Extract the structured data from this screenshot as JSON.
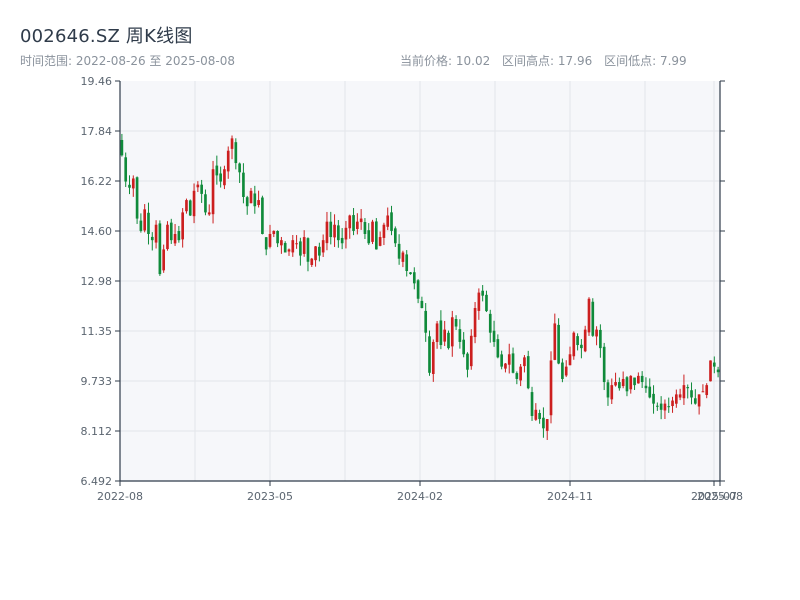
{
  "header": {
    "title": "002646.SZ 周K线图",
    "date_range": "时间范围: 2022-08-26 至 2025-08-08",
    "current_price": "当前价格: 10.02",
    "range_high": "区间高点: 17.96",
    "range_low": "区间低点: 7.99"
  },
  "colors": {
    "up": "#cc1f1f",
    "down": "#0f8a3a",
    "plot_bg": "#f6f7fa",
    "grid": "#e3e6ea",
    "axis": "#2f3b4a"
  },
  "chart_data": {
    "type": "candlestick",
    "title": "002646.SZ 周K线图",
    "ylim": [
      6.492,
      19.46
    ],
    "y_ticks": [
      "19.46",
      "17.84",
      "16.22",
      "14.60",
      "12.98",
      "11.35",
      "9.733",
      "8.112",
      "6.492"
    ],
    "x_ticks": [
      "2022-08",
      "2023-05",
      "2024-02",
      "2024-11",
      "2025-07",
      "2025-08"
    ],
    "grid": true,
    "up_color": "#cc1f1f",
    "down_color": "#0f8a3a",
    "closes": [
      17.05,
      16.2,
      16.0,
      16.3,
      15.0,
      14.6,
      15.3,
      14.5,
      14.3,
      14.8,
      13.2,
      14.0,
      14.8,
      14.3,
      14.5,
      14.3,
      15.2,
      15.6,
      15.1,
      15.9,
      16.1,
      15.8,
      15.2,
      15.2,
      16.6,
      16.4,
      16.2,
      16.6,
      17.2,
      17.6,
      16.8,
      16.5,
      15.7,
      15.4,
      15.9,
      15.4,
      15.6,
      14.5,
      14.0,
      14.5,
      14.6,
      14.2,
      14.3,
      13.9,
      14.0,
      14.3,
      14.2,
      13.8,
      14.4,
      13.6,
      13.7,
      14.1,
      13.8,
      14.3,
      14.9,
      14.4,
      14.8,
      14.3,
      14.2,
      14.7,
      15.1,
      14.6,
      14.9,
      15.0,
      14.5,
      14.2,
      14.9,
      14.0,
      14.4,
      14.8,
      15.1,
      14.6,
      14.2,
      13.7,
      13.9,
      13.3,
      13.2,
      12.9,
      12.4,
      12.1,
      11.3,
      10.0,
      11.0,
      11.6,
      10.9,
      11.4,
      10.8,
      11.8,
      11.5,
      11.0,
      10.6,
      10.1,
      11.2,
      12.1,
      12.6,
      12.5,
      12.0,
      11.3,
      11.0,
      10.5,
      10.2,
      10.3,
      10.6,
      10.0,
      9.8,
      10.2,
      10.5,
      9.5,
      8.6,
      8.8,
      8.5,
      8.2,
      8.5,
      10.4,
      11.6,
      10.3,
      9.8,
      10.2,
      10.6,
      11.3,
      10.9,
      10.8,
      11.4,
      12.4,
      11.2,
      11.4,
      10.8,
      9.7,
      9.2,
      9.6,
      9.7,
      9.5,
      9.8,
      9.4,
      9.9,
      9.6,
      9.9,
      9.7,
      9.5,
      9.2,
      9.0,
      8.9,
      8.8,
      9.0,
      8.9,
      9.1,
      9.3,
      9.3,
      9.6,
      9.5,
      9.2,
      9.0,
      9.3,
      9.4,
      9.6,
      10.4,
      10.2,
      10.02
    ]
  }
}
